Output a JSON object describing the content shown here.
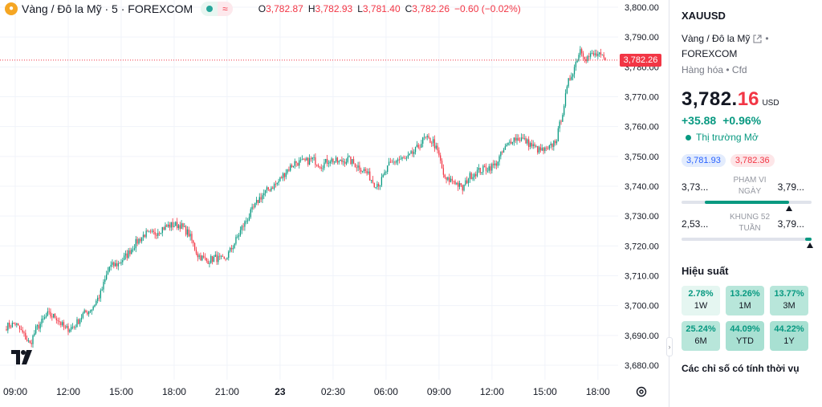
{
  "legend": {
    "symbol_title": "Vàng / Đô la Mỹ · 5 · FOREXCOM",
    "approx_label": "≈",
    "ohlc": {
      "o_label": "O",
      "o": "3,782.87",
      "h_label": "H",
      "h": "3,782.93",
      "l_label": "L",
      "l": "3,781.40",
      "c_label": "C",
      "c": "3,782.26",
      "change": "−0.60 (−0.02%)"
    }
  },
  "price_tag": "3,782.26",
  "colors": {
    "up": "#089981",
    "down": "#f23645",
    "accent_blue": "#2962ff",
    "grid": "#f0f3fa"
  },
  "chart_data": {
    "type": "candlestick",
    "ylim": [
      3675,
      3802
    ],
    "y_ticks": [
      3800,
      3790,
      3780,
      3770,
      3760,
      3750,
      3740,
      3730,
      3720,
      3710,
      3700,
      3690,
      3680
    ],
    "y_tick_labels": [
      "3,800.00",
      "3,790.00",
      "3,780.00",
      "3,770.00",
      "3,760.00",
      "3,750.00",
      "3,740.00",
      "3,730.00",
      "3,720.00",
      "3,710.00",
      "3,700.00",
      "3,690.00",
      "3,680.00"
    ],
    "x_ticks": [
      {
        "label": "09:00",
        "i": 6,
        "bold": false
      },
      {
        "label": "12:00",
        "i": 42,
        "bold": false
      },
      {
        "label": "15:00",
        "i": 78,
        "bold": false
      },
      {
        "label": "18:00",
        "i": 114,
        "bold": false
      },
      {
        "label": "21:00",
        "i": 150,
        "bold": false
      },
      {
        "label": "23",
        "i": 186,
        "bold": true
      },
      {
        "label": "02:30",
        "i": 222,
        "bold": false
      },
      {
        "label": "06:00",
        "i": 258,
        "bold": false
      },
      {
        "label": "09:00",
        "i": 294,
        "bold": false
      },
      {
        "label": "12:00",
        "i": 330,
        "bold": false
      },
      {
        "label": "15:00",
        "i": 366,
        "bold": false
      },
      {
        "label": "18:00",
        "i": 402,
        "bold": false
      }
    ],
    "bar_count": 408,
    "last_close": 3782.26,
    "anchors": [
      [
        0,
        3693
      ],
      [
        6,
        3694
      ],
      [
        12,
        3690
      ],
      [
        16,
        3687
      ],
      [
        20,
        3692
      ],
      [
        28,
        3697
      ],
      [
        34,
        3696
      ],
      [
        40,
        3692
      ],
      [
        46,
        3693
      ],
      [
        52,
        3697
      ],
      [
        58,
        3699
      ],
      [
        64,
        3704
      ],
      [
        70,
        3713
      ],
      [
        76,
        3714
      ],
      [
        82,
        3717
      ],
      [
        88,
        3721
      ],
      [
        94,
        3724
      ],
      [
        100,
        3724
      ],
      [
        106,
        3726
      ],
      [
        112,
        3727
      ],
      [
        118,
        3727
      ],
      [
        124,
        3724
      ],
      [
        130,
        3717
      ],
      [
        136,
        3715
      ],
      [
        142,
        3716
      ],
      [
        148,
        3715
      ],
      [
        154,
        3720
      ],
      [
        160,
        3726
      ],
      [
        166,
        3731
      ],
      [
        172,
        3736
      ],
      [
        178,
        3739
      ],
      [
        184,
        3741
      ],
      [
        190,
        3745
      ],
      [
        196,
        3748
      ],
      [
        202,
        3748
      ],
      [
        208,
        3749
      ],
      [
        214,
        3747
      ],
      [
        220,
        3749
      ],
      [
        226,
        3748
      ],
      [
        232,
        3749
      ],
      [
        238,
        3747
      ],
      [
        244,
        3745
      ],
      [
        250,
        3741
      ],
      [
        254,
        3741
      ],
      [
        260,
        3747
      ],
      [
        266,
        3749
      ],
      [
        272,
        3749
      ],
      [
        278,
        3752
      ],
      [
        284,
        3756
      ],
      [
        290,
        3755
      ],
      [
        294,
        3750
      ],
      [
        298,
        3742
      ],
      [
        304,
        3742
      ],
      [
        310,
        3739
      ],
      [
        314,
        3743
      ],
      [
        320,
        3745
      ],
      [
        326,
        3746
      ],
      [
        332,
        3747
      ],
      [
        338,
        3752
      ],
      [
        344,
        3756
      ],
      [
        350,
        3756
      ],
      [
        356,
        3754
      ],
      [
        362,
        3752
      ],
      [
        368,
        3752
      ],
      [
        374,
        3756
      ],
      [
        378,
        3765
      ],
      [
        382,
        3775
      ],
      [
        386,
        3780
      ],
      [
        390,
        3786
      ],
      [
        394,
        3783
      ],
      [
        398,
        3784
      ],
      [
        402,
        3784
      ],
      [
        407,
        3782.26
      ]
    ]
  },
  "panel": {
    "symbol": "XAUUSD",
    "name": "Vàng / Đô la Mỹ",
    "name_suffix": "•",
    "exchange": "FOREXCOM",
    "category": "Hàng hóa • Cfd",
    "price_int": "3,782.",
    "price_dec": "16",
    "currency": "USD",
    "change_abs": "+35.88",
    "change_pct": "+0.96%",
    "market_status": "Thị trường Mở",
    "bid": "3,781.93",
    "ask": "3,782.36",
    "day_range": {
      "low": "3,73...",
      "label": "PHẠM VI NGÀY",
      "high": "3,79...",
      "fill_start": 0.18,
      "fill_end": 0.83,
      "marker": 0.83
    },
    "week52_range": {
      "low": "2,53...",
      "label": "KHUNG 52 TUẦN",
      "high": "3,79...",
      "fill_start": 0.95,
      "fill_end": 1.0,
      "marker": 0.99
    },
    "performance_title": "Hiệu suất",
    "performance": [
      {
        "value": "2.78%",
        "label": "1W"
      },
      {
        "value": "13.26%",
        "label": "1M"
      },
      {
        "value": "13.77%",
        "label": "3M"
      },
      {
        "value": "25.24%",
        "label": "6M"
      },
      {
        "value": "44.09%",
        "label": "YTD"
      },
      {
        "value": "44.22%",
        "label": "1Y"
      }
    ],
    "technicals_title": "Các chỉ số có tính thời vụ"
  }
}
